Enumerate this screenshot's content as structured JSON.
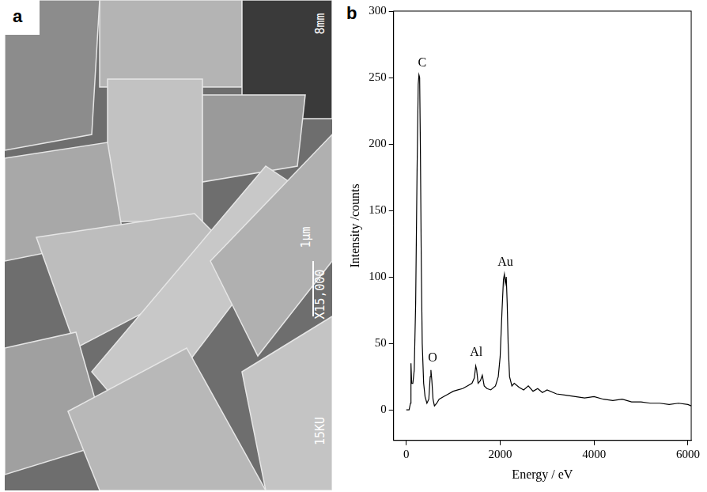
{
  "panel_a": {
    "label": "a",
    "micrograph_texts": [
      "8mm",
      "1μm",
      "X15,000",
      "15KU"
    ]
  },
  "chart_data": {
    "label": "b",
    "type": "line",
    "x_label": "Energy / eV",
    "y_label": "Intensity /counts",
    "xlim": [
      -270,
      6070
    ],
    "xticks": [
      0,
      2000,
      4000,
      6000
    ],
    "ylim": [
      -23,
      300
    ],
    "yticks": [
      0,
      50,
      100,
      150,
      200,
      250,
      300
    ],
    "grid": false,
    "color": "#000000",
    "x": [
      0,
      60,
      90,
      100,
      115,
      140,
      170,
      200,
      230,
      255,
      270,
      285,
      300,
      320,
      340,
      370,
      400,
      440,
      480,
      510,
      525,
      545,
      570,
      600,
      650,
      700,
      800,
      900,
      1000,
      1100,
      1200,
      1300,
      1400,
      1450,
      1480,
      1500,
      1530,
      1580,
      1620,
      1660,
      1720,
      1800,
      1900,
      1960,
      2000,
      2040,
      2070,
      2090,
      2110,
      2130,
      2150,
      2170,
      2200,
      2250,
      2300,
      2400,
      2500,
      2600,
      2700,
      2800,
      2900,
      3000,
      3200,
      3400,
      3600,
      3800,
      4000,
      4200,
      4400,
      4600,
      4800,
      5000,
      5200,
      5400,
      5600,
      5800,
      6000,
      6070
    ],
    "values": [
      0,
      0,
      5,
      35,
      20,
      20,
      30,
      80,
      180,
      245,
      252,
      250,
      200,
      110,
      50,
      20,
      10,
      5,
      8,
      25,
      30,
      22,
      8,
      3,
      5,
      8,
      10,
      12,
      14,
      15,
      16,
      18,
      20,
      24,
      33,
      30,
      20,
      22,
      26,
      18,
      16,
      15,
      18,
      25,
      40,
      75,
      98,
      102,
      95,
      100,
      80,
      50,
      25,
      18,
      20,
      17,
      15,
      18,
      14,
      16,
      13,
      15,
      12,
      11,
      10,
      9,
      10,
      8,
      7,
      8,
      6,
      6,
      5,
      5,
      4,
      5,
      4,
      3
    ],
    "annotations": [
      {
        "text": "C",
        "x": 340,
        "y": 256
      },
      {
        "text": "O",
        "x": 560,
        "y": 34
      },
      {
        "text": "Al",
        "x": 1490,
        "y": 38
      },
      {
        "text": "Au",
        "x": 2110,
        "y": 106
      }
    ]
  }
}
